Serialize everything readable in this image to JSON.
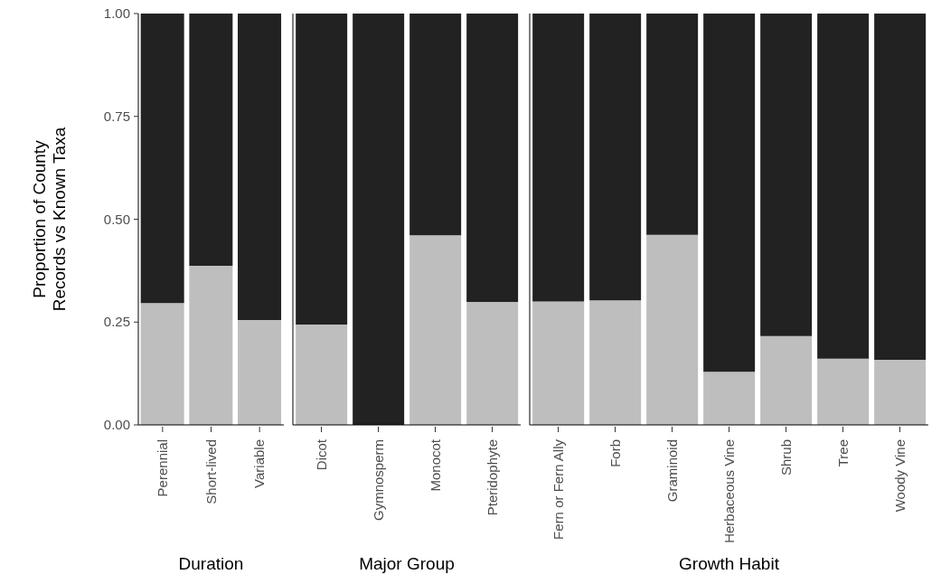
{
  "chart_data": [
    {
      "type": "bar",
      "stacked": true,
      "ylabel": "Proportion of County\nRecords vs Known Taxa",
      "xlabel": "Duration",
      "categories": [
        "Perennial",
        "Short-lived",
        "Variable"
      ],
      "series": [
        {
          "color": "#bebebe",
          "values": [
            0.296,
            0.387,
            0.255
          ]
        },
        {
          "color": "#222222",
          "values": [
            0.704,
            0.613,
            0.745
          ]
        }
      ],
      "ylim": [
        0,
        1
      ],
      "yticks": [
        {
          "value": 0,
          "label": "0.00"
        },
        {
          "value": 0.25,
          "label": "0.25"
        },
        {
          "value": 0.5,
          "label": "0.50"
        },
        {
          "value": 0.75,
          "label": "0.75"
        },
        {
          "value": 1,
          "label": "1.00"
        }
      ]
    },
    {
      "type": "bar",
      "stacked": true,
      "xlabel": "Major Group",
      "categories": [
        "Dicot",
        "Gymnosperm",
        "Monocot",
        "Pteridophyte"
      ],
      "series": [
        {
          "color": "#bebebe",
          "values": [
            0.244,
            0,
            0.461,
            0.299
          ]
        },
        {
          "color": "#222222",
          "values": [
            0.756,
            1,
            0.539,
            0.701
          ]
        }
      ],
      "ylim": [
        0,
        1
      ],
      "tick_labels": "x"
    },
    {
      "type": "bar",
      "stacked": true,
      "xlabel": "Growth Habit",
      "categories": [
        "Fern or Fern Ally",
        "Forb",
        "Graminoid",
        "Herbaceous Vine",
        "Shrub",
        "Tree",
        "Woody Vine"
      ],
      "series": [
        {
          "color": "#bebebe",
          "values": [
            0.3,
            0.303,
            0.462,
            0.129,
            0.216,
            0.161,
            0.158
          ]
        },
        {
          "color": "#222222",
          "values": [
            0.7,
            0.697,
            0.538,
            0.871,
            0.784,
            0.839,
            0.842
          ]
        }
      ],
      "ylim": [
        0,
        1
      ],
      "tick_labels": "x"
    }
  ]
}
